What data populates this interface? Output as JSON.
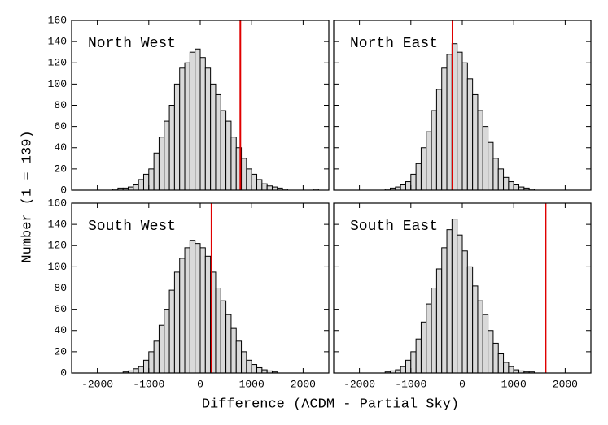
{
  "ylabel": "Number (1 = 139)",
  "xlabel": "Difference (ΛCDM - Partial Sky)",
  "chart_data": [
    {
      "type": "histogram",
      "title": "North West",
      "color": "#d9d9d9",
      "marker_line": 780,
      "marker_color": "#e00000",
      "bins": [
        -2500,
        -2400,
        -2300,
        -2200,
        -2100,
        -2000,
        -1900,
        -1800,
        -1700,
        -1600,
        -1500,
        -1400,
        -1300,
        -1200,
        -1100,
        -1000,
        -900,
        -800,
        -700,
        -600,
        -500,
        -400,
        -300,
        -200,
        -100,
        0,
        100,
        200,
        300,
        400,
        500,
        600,
        700,
        800,
        900,
        1000,
        1100,
        1200,
        1300,
        1400,
        1500,
        1600,
        1700,
        1800,
        1900,
        2000,
        2100,
        2200,
        2300,
        2400,
        2500
      ],
      "values": [
        0,
        0,
        0,
        0,
        0,
        0,
        0,
        0,
        1,
        2,
        2,
        3,
        5,
        10,
        15,
        20,
        35,
        50,
        65,
        80,
        100,
        115,
        120,
        130,
        133,
        125,
        115,
        100,
        90,
        75,
        65,
        50,
        40,
        30,
        20,
        15,
        10,
        6,
        4,
        3,
        2,
        1,
        0,
        0,
        0,
        0,
        0,
        1,
        0,
        0
      ],
      "xlim": [
        -2500,
        2500
      ],
      "ylim": [
        0,
        160
      ],
      "xticks": [
        -2000,
        -1000,
        0,
        1000,
        2000
      ],
      "yticks": [
        0,
        20,
        40,
        60,
        80,
        100,
        120,
        140,
        160
      ]
    },
    {
      "type": "histogram",
      "title": "North East",
      "color": "#d9d9d9",
      "marker_line": -190,
      "marker_color": "#e00000",
      "bins": [
        -2500,
        -2400,
        -2300,
        -2200,
        -2100,
        -2000,
        -1900,
        -1800,
        -1700,
        -1600,
        -1500,
        -1400,
        -1300,
        -1200,
        -1100,
        -1000,
        -900,
        -800,
        -700,
        -600,
        -500,
        -400,
        -300,
        -200,
        -100,
        0,
        100,
        200,
        300,
        400,
        500,
        600,
        700,
        800,
        900,
        1000,
        1100,
        1200,
        1300,
        1400,
        1500,
        1600,
        1700,
        1800,
        1900,
        2000,
        2100,
        2200,
        2300,
        2400,
        2500
      ],
      "values": [
        0,
        0,
        0,
        0,
        0,
        0,
        0,
        0,
        0,
        0,
        1,
        2,
        3,
        5,
        8,
        15,
        25,
        40,
        55,
        75,
        95,
        115,
        128,
        138,
        130,
        120,
        105,
        90,
        75,
        60,
        45,
        30,
        20,
        12,
        8,
        5,
        3,
        2,
        1,
        0,
        0,
        0,
        0,
        0,
        0,
        0,
        0,
        0,
        0,
        0
      ],
      "xlim": [
        -2500,
        2500
      ],
      "ylim": [
        0,
        160
      ],
      "xticks": [
        -2000,
        -1000,
        0,
        1000,
        2000
      ],
      "yticks": [
        0,
        20,
        40,
        60,
        80,
        100,
        120,
        140,
        160
      ]
    },
    {
      "type": "histogram",
      "title": "South West",
      "color": "#d9d9d9",
      "marker_line": 220,
      "marker_color": "#e00000",
      "bins": [
        -2500,
        -2400,
        -2300,
        -2200,
        -2100,
        -2000,
        -1900,
        -1800,
        -1700,
        -1600,
        -1500,
        -1400,
        -1300,
        -1200,
        -1100,
        -1000,
        -900,
        -800,
        -700,
        -600,
        -500,
        -400,
        -300,
        -200,
        -100,
        0,
        100,
        200,
        300,
        400,
        500,
        600,
        700,
        800,
        900,
        1000,
        1100,
        1200,
        1300,
        1400,
        1500,
        1600,
        1700,
        1800,
        1900,
        2000,
        2100,
        2200,
        2300,
        2400,
        2500
      ],
      "values": [
        0,
        0,
        0,
        0,
        0,
        0,
        0,
        0,
        0,
        0,
        1,
        2,
        4,
        6,
        12,
        20,
        30,
        45,
        60,
        78,
        95,
        108,
        118,
        125,
        122,
        118,
        110,
        95,
        80,
        68,
        55,
        42,
        30,
        20,
        12,
        8,
        5,
        3,
        2,
        1,
        0,
        0,
        0,
        0,
        0,
        0,
        0,
        0,
        0,
        0
      ],
      "xlim": [
        -2500,
        2500
      ],
      "ylim": [
        0,
        160
      ],
      "xticks": [
        -2000,
        -1000,
        0,
        1000,
        2000
      ],
      "yticks": [
        0,
        20,
        40,
        60,
        80,
        100,
        120,
        140,
        160
      ]
    },
    {
      "type": "histogram",
      "title": "South East",
      "color": "#d9d9d9",
      "marker_line": 1620,
      "marker_color": "#e00000",
      "bins": [
        -2500,
        -2400,
        -2300,
        -2200,
        -2100,
        -2000,
        -1900,
        -1800,
        -1700,
        -1600,
        -1500,
        -1400,
        -1300,
        -1200,
        -1100,
        -1000,
        -900,
        -800,
        -700,
        -600,
        -500,
        -400,
        -300,
        -200,
        -100,
        0,
        100,
        200,
        300,
        400,
        500,
        600,
        700,
        800,
        900,
        1000,
        1100,
        1200,
        1300,
        1400,
        1500,
        1600,
        1700,
        1800,
        1900,
        2000,
        2100,
        2200,
        2300,
        2400,
        2500
      ],
      "values": [
        0,
        0,
        0,
        0,
        0,
        0,
        0,
        0,
        0,
        0,
        1,
        2,
        3,
        6,
        12,
        20,
        32,
        48,
        65,
        80,
        98,
        118,
        135,
        145,
        130,
        115,
        100,
        82,
        68,
        55,
        40,
        28,
        18,
        10,
        6,
        3,
        2,
        1,
        1,
        0,
        0,
        0,
        0,
        0,
        0,
        0,
        0,
        0,
        0,
        0
      ],
      "xlim": [
        -2500,
        2500
      ],
      "ylim": [
        0,
        160
      ],
      "xticks": [
        -2000,
        -1000,
        0,
        1000,
        2000
      ],
      "yticks": [
        0,
        20,
        40,
        60,
        80,
        100,
        120,
        140,
        160
      ]
    }
  ]
}
